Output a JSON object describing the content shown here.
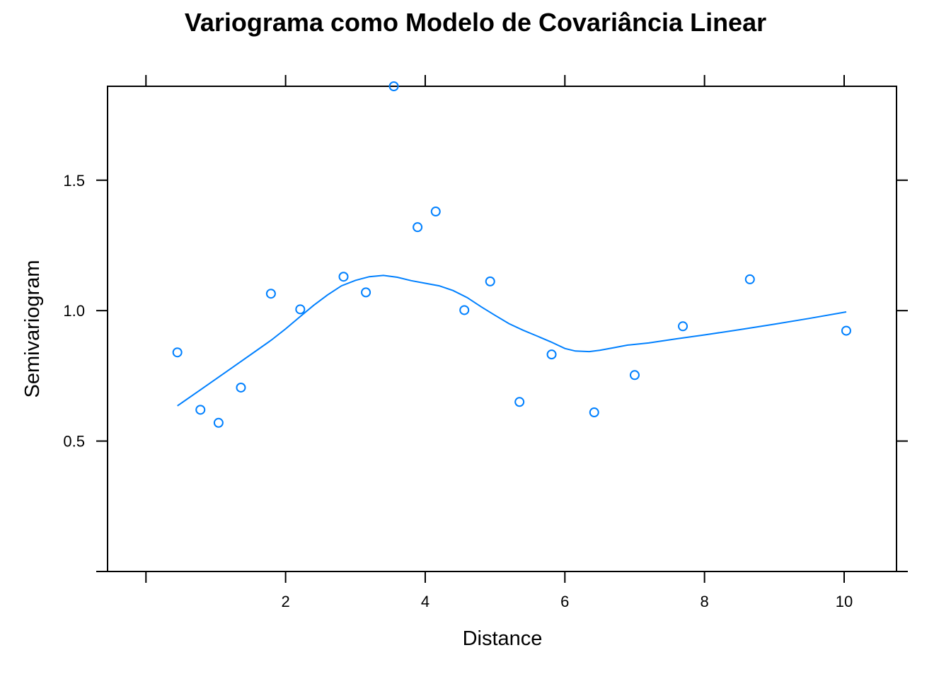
{
  "chart_data": {
    "type": "scatter",
    "title": "Variograma como Modelo de Covariância Linear",
    "xlabel": "Distance",
    "ylabel": "Semivariogram",
    "xlim": [
      -0.55,
      10.75
    ],
    "ylim": [
      0.0,
      1.86
    ],
    "x_ticks": [
      0,
      2,
      4,
      6,
      8,
      10
    ],
    "x_tick_labels": [
      "",
      "2",
      "4",
      "6",
      "8",
      "10"
    ],
    "y_ticks": [
      0.5,
      1.0,
      1.5
    ],
    "y_tick_labels": [
      "0.5",
      "1.0",
      "1.5"
    ],
    "grid": false,
    "legend": "none",
    "color": "#0080ff",
    "series": [
      {
        "kind": "points",
        "x": [
          0.45,
          0.78,
          1.04,
          1.36,
          1.79,
          2.21,
          2.83,
          3.15,
          3.55,
          3.89,
          4.15,
          4.56,
          4.93,
          5.35,
          5.81,
          6.42,
          7.0,
          7.69,
          8.65,
          10.03
        ],
        "y": [
          0.84,
          0.62,
          0.57,
          0.705,
          1.065,
          1.005,
          1.13,
          1.07,
          1.86,
          1.32,
          1.38,
          1.002,
          1.112,
          0.65,
          0.832,
          0.61,
          0.753,
          0.94,
          1.12,
          0.923
        ]
      },
      {
        "kind": "smooth",
        "x": [
          0.45,
          0.8,
          1.2,
          1.6,
          1.8,
          2.0,
          2.2,
          2.4,
          2.6,
          2.8,
          3.0,
          3.2,
          3.4,
          3.6,
          3.8,
          4.0,
          4.2,
          4.4,
          4.6,
          4.8,
          5.0,
          5.2,
          5.4,
          5.6,
          5.8,
          6.0,
          6.15,
          6.35,
          6.5,
          6.7,
          6.9,
          7.2,
          7.6,
          8.0,
          8.5,
          9.0,
          9.5,
          10.03
        ],
        "y": [
          0.635,
          0.7,
          0.775,
          0.85,
          0.888,
          0.93,
          0.975,
          1.02,
          1.06,
          1.095,
          1.116,
          1.13,
          1.135,
          1.128,
          1.115,
          1.105,
          1.095,
          1.077,
          1.05,
          1.015,
          0.982,
          0.95,
          0.925,
          0.903,
          0.88,
          0.855,
          0.845,
          0.843,
          0.848,
          0.858,
          0.868,
          0.876,
          0.892,
          0.907,
          0.927,
          0.948,
          0.97,
          0.995
        ]
      }
    ]
  }
}
